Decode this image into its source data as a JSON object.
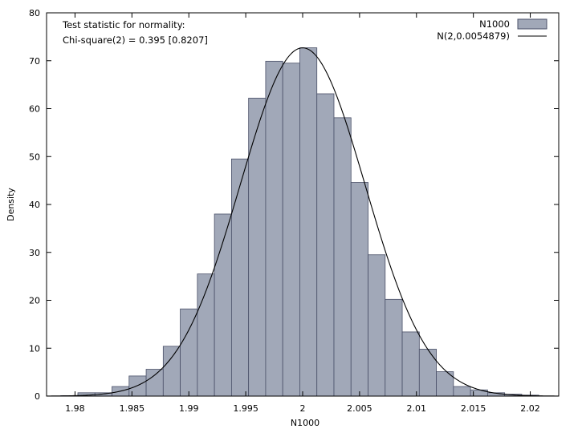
{
  "chart_data": {
    "type": "bar",
    "subtype": "histogram-with-density-curve",
    "xlabel": "N1000",
    "ylabel": "Density",
    "xlim": [
      1.9775,
      2.0225
    ],
    "ylim": [
      0,
      80
    ],
    "xticks": [
      1.98,
      1.985,
      1.99,
      1.995,
      2,
      2.005,
      2.01,
      2.015,
      2.02
    ],
    "xtick_labels": [
      "1.98",
      "1.985",
      "1.99",
      "1.995",
      "2",
      "2.005",
      "2.01",
      "2.015",
      "2.02"
    ],
    "yticks": [
      0,
      10,
      20,
      30,
      40,
      50,
      60,
      70,
      80
    ],
    "ytick_labels": [
      "0",
      "10",
      "20",
      "30",
      "40",
      "50",
      "60",
      "70",
      "80"
    ],
    "grid": false,
    "legend_position": "top-right",
    "annotations": [
      "Test statistic for normality:",
      "Chi-square(2) = 0.395 [0.8207]"
    ],
    "bar_color": "#a1a8b8",
    "bar_edge_color": "#4a5068",
    "curve_color": "#000000",
    "series": [
      {
        "name": "N1000",
        "kind": "histogram",
        "bin_width": 0.0015,
        "bin_centers": [
          1.9795,
          1.981,
          1.9825,
          1.984,
          1.9855,
          1.987,
          1.9885,
          1.99,
          1.9915,
          1.993,
          1.9945,
          1.996,
          1.9975,
          1.999,
          2.0005,
          2.002,
          2.0035,
          2.005,
          2.0065,
          2.008,
          2.0095,
          2.011,
          2.0125,
          2.014,
          2.0155,
          2.017,
          2.0185,
          2.02
        ],
        "values": [
          0.1,
          0.7,
          0.7,
          2.0,
          4.2,
          5.6,
          10.4,
          18.2,
          25.5,
          38.0,
          49.5,
          62.2,
          69.9,
          69.5,
          72.7,
          63.1,
          58.1,
          44.6,
          29.5,
          20.2,
          13.4,
          9.8,
          5.1,
          2.0,
          1.3,
          0.7,
          0.4,
          0.2
        ]
      },
      {
        "name": "N(2,0.0054879)",
        "kind": "normal-density",
        "mean": 2,
        "sd": 0.0054879
      }
    ]
  }
}
